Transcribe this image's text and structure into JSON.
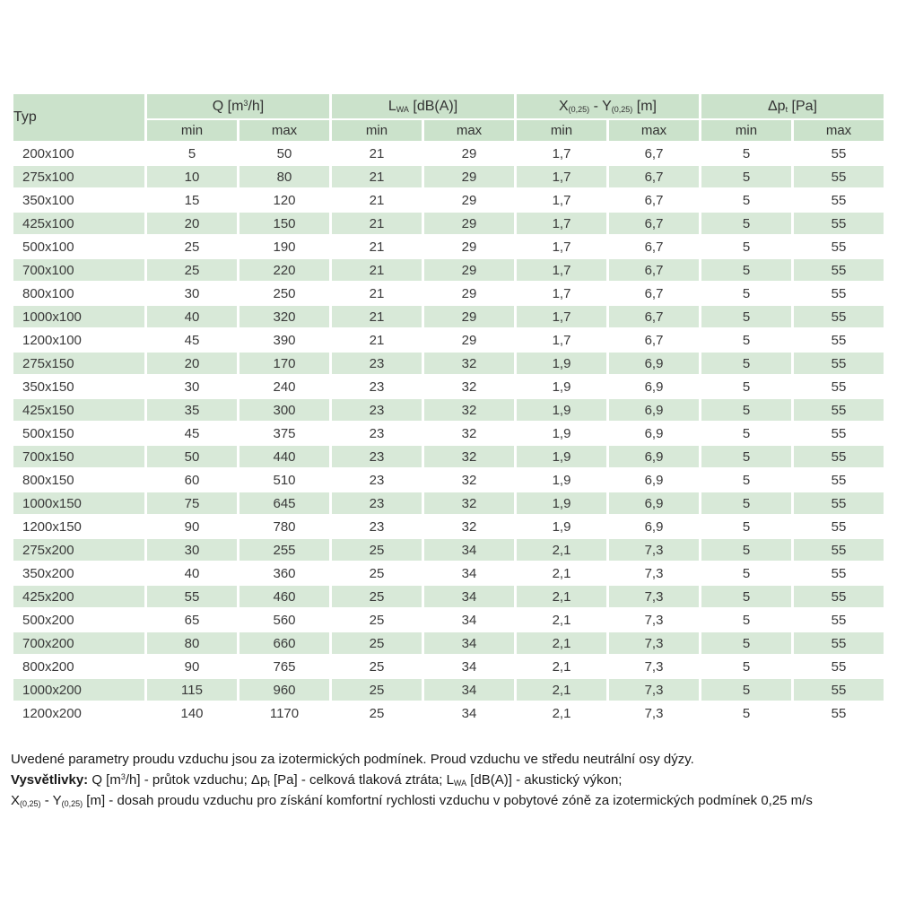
{
  "colors": {
    "header_green": "#cbe2cb",
    "row_stripe_green": "#d8e9d8",
    "text": "#3a3a3a",
    "background": "#ffffff"
  },
  "table": {
    "typ_header": "Typ",
    "groups": {
      "q": [
        {
          "t": "Q [m"
        },
        {
          "t": "3",
          "s": "sup"
        },
        {
          "t": "/h]"
        }
      ],
      "lwa": [
        {
          "t": "L"
        },
        {
          "t": "WA",
          "s": "sub"
        },
        {
          "t": " [dB(A)]"
        }
      ],
      "xy": [
        {
          "t": "X"
        },
        {
          "t": "(0,25)",
          "s": "sub"
        },
        {
          "t": " - Y"
        },
        {
          "t": "(0,25)",
          "s": "sub"
        },
        {
          "t": " [m]"
        }
      ],
      "dp": [
        {
          "t": "Δp"
        },
        {
          "t": "t",
          "s": "sub"
        },
        {
          "t": " [Pa]"
        }
      ]
    },
    "subheaders": [
      "min",
      "max",
      "min",
      "max",
      "min",
      "max",
      "min",
      "max"
    ],
    "rows": [
      {
        "typ": "200x100",
        "values": [
          "5",
          "50",
          "21",
          "29",
          "1,7",
          "6,7",
          "5",
          "55"
        ]
      },
      {
        "typ": "275x100",
        "values": [
          "10",
          "80",
          "21",
          "29",
          "1,7",
          "6,7",
          "5",
          "55"
        ]
      },
      {
        "typ": "350x100",
        "values": [
          "15",
          "120",
          "21",
          "29",
          "1,7",
          "6,7",
          "5",
          "55"
        ]
      },
      {
        "typ": "425x100",
        "values": [
          "20",
          "150",
          "21",
          "29",
          "1,7",
          "6,7",
          "5",
          "55"
        ]
      },
      {
        "typ": "500x100",
        "values": [
          "25",
          "190",
          "21",
          "29",
          "1,7",
          "6,7",
          "5",
          "55"
        ]
      },
      {
        "typ": "700x100",
        "values": [
          "25",
          "220",
          "21",
          "29",
          "1,7",
          "6,7",
          "5",
          "55"
        ]
      },
      {
        "typ": "800x100",
        "values": [
          "30",
          "250",
          "21",
          "29",
          "1,7",
          "6,7",
          "5",
          "55"
        ]
      },
      {
        "typ": "1000x100",
        "values": [
          "40",
          "320",
          "21",
          "29",
          "1,7",
          "6,7",
          "5",
          "55"
        ]
      },
      {
        "typ": "1200x100",
        "values": [
          "45",
          "390",
          "21",
          "29",
          "1,7",
          "6,7",
          "5",
          "55"
        ]
      },
      {
        "typ": "275x150",
        "values": [
          "20",
          "170",
          "23",
          "32",
          "1,9",
          "6,9",
          "5",
          "55"
        ]
      },
      {
        "typ": "350x150",
        "values": [
          "30",
          "240",
          "23",
          "32",
          "1,9",
          "6,9",
          "5",
          "55"
        ]
      },
      {
        "typ": "425x150",
        "values": [
          "35",
          "300",
          "23",
          "32",
          "1,9",
          "6,9",
          "5",
          "55"
        ]
      },
      {
        "typ": "500x150",
        "values": [
          "45",
          "375",
          "23",
          "32",
          "1,9",
          "6,9",
          "5",
          "55"
        ]
      },
      {
        "typ": "700x150",
        "values": [
          "50",
          "440",
          "23",
          "32",
          "1,9",
          "6,9",
          "5",
          "55"
        ]
      },
      {
        "typ": "800x150",
        "values": [
          "60",
          "510",
          "23",
          "32",
          "1,9",
          "6,9",
          "5",
          "55"
        ]
      },
      {
        "typ": "1000x150",
        "values": [
          "75",
          "645",
          "23",
          "32",
          "1,9",
          "6,9",
          "5",
          "55"
        ]
      },
      {
        "typ": "1200x150",
        "values": [
          "90",
          "780",
          "23",
          "32",
          "1,9",
          "6,9",
          "5",
          "55"
        ]
      },
      {
        "typ": "275x200",
        "values": [
          "30",
          "255",
          "25",
          "34",
          "2,1",
          "7,3",
          "5",
          "55"
        ]
      },
      {
        "typ": "350x200",
        "values": [
          "40",
          "360",
          "25",
          "34",
          "2,1",
          "7,3",
          "5",
          "55"
        ]
      },
      {
        "typ": "425x200",
        "values": [
          "55",
          "460",
          "25",
          "34",
          "2,1",
          "7,3",
          "5",
          "55"
        ]
      },
      {
        "typ": "500x200",
        "values": [
          "65",
          "560",
          "25",
          "34",
          "2,1",
          "7,3",
          "5",
          "55"
        ]
      },
      {
        "typ": "700x200",
        "values": [
          "80",
          "660",
          "25",
          "34",
          "2,1",
          "7,3",
          "5",
          "55"
        ]
      },
      {
        "typ": "800x200",
        "values": [
          "90",
          "765",
          "25",
          "34",
          "2,1",
          "7,3",
          "5",
          "55"
        ]
      },
      {
        "typ": "1000x200",
        "values": [
          "115",
          "960",
          "25",
          "34",
          "2,1",
          "7,3",
          "5",
          "55"
        ]
      },
      {
        "typ": "1200x200",
        "values": [
          "140",
          "1170",
          "25",
          "34",
          "2,1",
          "7,3",
          "5",
          "55"
        ]
      }
    ]
  },
  "notes": {
    "line1": "Uvedené parametry proudu vzduchu jsou za izotermických podmínek. Proud vzduchu ve středu neutrální osy dýzy.",
    "line2": [
      {
        "t": "Vysvětlivky: ",
        "s": "b"
      },
      {
        "t": "Q [m"
      },
      {
        "t": "3",
        "s": "sup"
      },
      {
        "t": "/h] - průtok vzduchu; Δp"
      },
      {
        "t": "t",
        "s": "sub"
      },
      {
        "t": " [Pa] - celková tlaková ztráta; L"
      },
      {
        "t": "WA",
        "s": "sub"
      },
      {
        "t": " [dB(A)] - akustický výkon;"
      }
    ],
    "line3": [
      {
        "t": "X"
      },
      {
        "t": "(0,25)",
        "s": "sub"
      },
      {
        "t": " - Y"
      },
      {
        "t": "(0,25)",
        "s": "sub"
      },
      {
        "t": " [m] - dosah proudu vzduchu pro získání komfortní rychlosti vzduchu v pobytové zóně za izotermických podmínek 0,25 m/s"
      }
    ]
  }
}
